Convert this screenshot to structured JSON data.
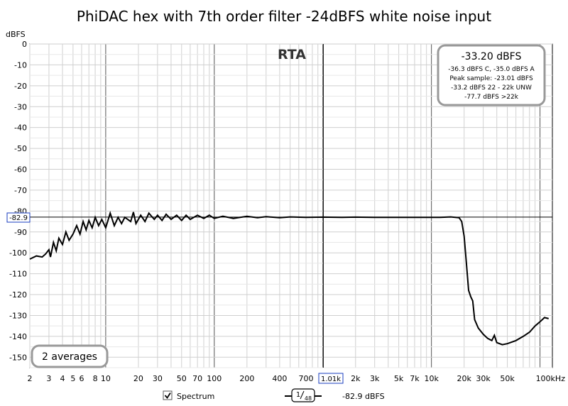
{
  "title": "PhiDAC hex with 7th order filter -24dBFS white noise input",
  "rta_label": "RTA",
  "averages_label": "2 averages",
  "stats_box": {
    "main": "-33.20 dBFS",
    "lines": [
      "-36.3 dBFS C, -35.0 dBFS A",
      "Peak sample: -23.01 dBFS",
      "-33.2 dBFS 22 - 22k UNW",
      "-77.7 dBFS >22k"
    ]
  },
  "cursor": {
    "y_readout": "-82.9",
    "x_readout": "1.01k",
    "x_value": 1010,
    "y_value": -82.9
  },
  "footer": {
    "spectrum_label": "Spectrum",
    "spectrum_checked": true,
    "smoothing_num": "1",
    "smoothing_den": "48",
    "value_readout": "-82.9 dBFS"
  },
  "chart_data": {
    "type": "line",
    "title": "PhiDAC hex with 7th order filter -24dBFS white noise input",
    "ylabel": "dBFS",
    "xlabel": "",
    "x_scale": "log",
    "xlim": [
      2,
      130000
    ],
    "ylim": [
      -155,
      0
    ],
    "grid": true,
    "x_tick_labels": [
      {
        "v": 2,
        "t": "2"
      },
      {
        "v": 3,
        "t": "3"
      },
      {
        "v": 4,
        "t": "4"
      },
      {
        "v": 5,
        "t": "5"
      },
      {
        "v": 6,
        "t": "6"
      },
      {
        "v": 8,
        "t": "8"
      },
      {
        "v": 10,
        "t": "10"
      },
      {
        "v": 20,
        "t": "20"
      },
      {
        "v": 30,
        "t": "30"
      },
      {
        "v": 50,
        "t": "50"
      },
      {
        "v": 70,
        "t": "70"
      },
      {
        "v": 100,
        "t": "100"
      },
      {
        "v": 200,
        "t": "200"
      },
      {
        "v": 400,
        "t": "400"
      },
      {
        "v": 700,
        "t": "700"
      },
      {
        "v": 2000,
        "t": "2k"
      },
      {
        "v": 3000,
        "t": "3k"
      },
      {
        "v": 5000,
        "t": "5k"
      },
      {
        "v": 7000,
        "t": "7k"
      },
      {
        "v": 10000,
        "t": "10k"
      },
      {
        "v": 20000,
        "t": "20k"
      },
      {
        "v": 30000,
        "t": "30k"
      },
      {
        "v": 50000,
        "t": "50k"
      },
      {
        "v": 100000,
        "t": "100kHz"
      }
    ],
    "y_ticks": [
      0,
      -10,
      -20,
      -30,
      -40,
      -50,
      -60,
      -70,
      -80,
      -90,
      -100,
      -110,
      -120,
      -130,
      -140,
      -150
    ],
    "series": [
      {
        "color": "#000000",
        "points": [
          [
            2,
            -103
          ],
          [
            2.3,
            -101.5
          ],
          [
            2.6,
            -102
          ],
          [
            2.8,
            -100.5
          ],
          [
            3.0,
            -98.5
          ],
          [
            3.1,
            -102
          ],
          [
            3.3,
            -95
          ],
          [
            3.5,
            -99
          ],
          [
            3.7,
            -93
          ],
          [
            4.0,
            -96
          ],
          [
            4.3,
            -90
          ],
          [
            4.6,
            -94
          ],
          [
            5.0,
            -91
          ],
          [
            5.4,
            -87
          ],
          [
            5.8,
            -91
          ],
          [
            6.2,
            -85
          ],
          [
            6.6,
            -89
          ],
          [
            7.0,
            -84.5
          ],
          [
            7.5,
            -88
          ],
          [
            8.0,
            -83
          ],
          [
            8.6,
            -87
          ],
          [
            9.2,
            -84
          ],
          [
            10,
            -88
          ],
          [
            11,
            -81
          ],
          [
            12,
            -87
          ],
          [
            13,
            -83
          ],
          [
            14,
            -86
          ],
          [
            15,
            -83
          ],
          [
            17,
            -85
          ],
          [
            18,
            -80.5
          ],
          [
            19,
            -86
          ],
          [
            21,
            -82
          ],
          [
            23,
            -85
          ],
          [
            25,
            -81
          ],
          [
            28,
            -84
          ],
          [
            30,
            -82
          ],
          [
            33,
            -84.5
          ],
          [
            36,
            -81.5
          ],
          [
            40,
            -84
          ],
          [
            45,
            -82
          ],
          [
            50,
            -84.5
          ],
          [
            55,
            -82
          ],
          [
            60,
            -84
          ],
          [
            70,
            -82
          ],
          [
            80,
            -83.5
          ],
          [
            90,
            -82
          ],
          [
            100,
            -83.5
          ],
          [
            120,
            -82.5
          ],
          [
            150,
            -83.5
          ],
          [
            200,
            -82.5
          ],
          [
            250,
            -83.2
          ],
          [
            300,
            -82.7
          ],
          [
            400,
            -83.2
          ],
          [
            500,
            -82.8
          ],
          [
            700,
            -83
          ],
          [
            1000,
            -82.9
          ],
          [
            1500,
            -83
          ],
          [
            2000,
            -82.9
          ],
          [
            3000,
            -83
          ],
          [
            5000,
            -83
          ],
          [
            7000,
            -83
          ],
          [
            10000,
            -83
          ],
          [
            12000,
            -83
          ],
          [
            15000,
            -82.8
          ],
          [
            18000,
            -83.2
          ],
          [
            19000,
            -85
          ],
          [
            20000,
            -92
          ],
          [
            21000,
            -105
          ],
          [
            22000,
            -118
          ],
          [
            23000,
            -121
          ],
          [
            24000,
            -123
          ],
          [
            25000,
            -132
          ],
          [
            27000,
            -136
          ],
          [
            30000,
            -139
          ],
          [
            33000,
            -141
          ],
          [
            36000,
            -142
          ],
          [
            38000,
            -139.5
          ],
          [
            40000,
            -143
          ],
          [
            45000,
            -144
          ],
          [
            50000,
            -143.5
          ],
          [
            60000,
            -142
          ],
          [
            70000,
            -140
          ],
          [
            80000,
            -138
          ],
          [
            90000,
            -135
          ],
          [
            100000,
            -133
          ],
          [
            110000,
            -131
          ],
          [
            120000,
            -131.5
          ]
        ]
      }
    ]
  }
}
